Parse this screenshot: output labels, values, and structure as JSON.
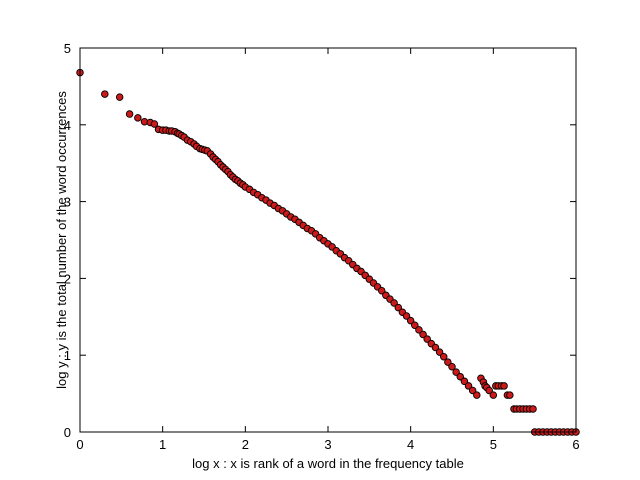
{
  "chart_data": {
    "type": "scatter",
    "title": "",
    "xlabel": "log x : x is rank of a word in the frequency table",
    "ylabel": "log y : y is the total number of the word occurrences",
    "xlim": [
      0,
      6
    ],
    "ylim": [
      0,
      5
    ],
    "xticks": [
      "0",
      "1",
      "2",
      "3",
      "4",
      "5",
      "6"
    ],
    "yticks": [
      "0",
      "1",
      "2",
      "3",
      "4",
      "5"
    ],
    "grid": false,
    "legend": "none",
    "colors": {
      "marker_fill": "#cc1a1a",
      "marker_edge": "#000000",
      "axis": "#000000"
    },
    "series": [
      {
        "values": [
          [
            0.0,
            4.68
          ],
          [
            0.3,
            4.4
          ],
          [
            0.48,
            4.36
          ],
          [
            0.6,
            4.14
          ],
          [
            0.7,
            4.09
          ],
          [
            0.78,
            4.04
          ],
          [
            0.85,
            4.03
          ],
          [
            0.9,
            4.01
          ],
          [
            0.95,
            3.94
          ],
          [
            1.0,
            3.93
          ],
          [
            1.04,
            3.93
          ],
          [
            1.08,
            3.92
          ],
          [
            1.11,
            3.92
          ],
          [
            1.15,
            3.91
          ],
          [
            1.18,
            3.89
          ],
          [
            1.2,
            3.88
          ],
          [
            1.23,
            3.86
          ],
          [
            1.26,
            3.84
          ],
          [
            1.3,
            3.8
          ],
          [
            1.34,
            3.78
          ],
          [
            1.38,
            3.75
          ],
          [
            1.41,
            3.72
          ],
          [
            1.45,
            3.69
          ],
          [
            1.48,
            3.68
          ],
          [
            1.51,
            3.67
          ],
          [
            1.54,
            3.66
          ],
          [
            1.58,
            3.62
          ],
          [
            1.61,
            3.58
          ],
          [
            1.64,
            3.55
          ],
          [
            1.67,
            3.52
          ],
          [
            1.7,
            3.48
          ],
          [
            1.73,
            3.45
          ],
          [
            1.76,
            3.42
          ],
          [
            1.79,
            3.39
          ],
          [
            1.82,
            3.35
          ],
          [
            1.85,
            3.32
          ],
          [
            1.88,
            3.29
          ],
          [
            1.91,
            3.27
          ],
          [
            1.94,
            3.24
          ],
          [
            1.97,
            3.22
          ],
          [
            2.0,
            3.19
          ],
          [
            2.05,
            3.16
          ],
          [
            2.1,
            3.12
          ],
          [
            2.15,
            3.09
          ],
          [
            2.2,
            3.05
          ],
          [
            2.25,
            3.02
          ],
          [
            2.3,
            2.98
          ],
          [
            2.35,
            2.95
          ],
          [
            2.4,
            2.91
          ],
          [
            2.45,
            2.88
          ],
          [
            2.5,
            2.84
          ],
          [
            2.55,
            2.8
          ],
          [
            2.6,
            2.77
          ],
          [
            2.65,
            2.73
          ],
          [
            2.7,
            2.69
          ],
          [
            2.75,
            2.65
          ],
          [
            2.8,
            2.62
          ],
          [
            2.85,
            2.58
          ],
          [
            2.9,
            2.53
          ],
          [
            2.95,
            2.49
          ],
          [
            3.0,
            2.45
          ],
          [
            3.05,
            2.41
          ],
          [
            3.1,
            2.36
          ],
          [
            3.15,
            2.32
          ],
          [
            3.2,
            2.27
          ],
          [
            3.25,
            2.23
          ],
          [
            3.3,
            2.18
          ],
          [
            3.35,
            2.13
          ],
          [
            3.4,
            2.09
          ],
          [
            3.45,
            2.04
          ],
          [
            3.5,
            1.99
          ],
          [
            3.55,
            1.94
          ],
          [
            3.6,
            1.89
          ],
          [
            3.65,
            1.84
          ],
          [
            3.7,
            1.78
          ],
          [
            3.75,
            1.73
          ],
          [
            3.8,
            1.68
          ],
          [
            3.85,
            1.62
          ],
          [
            3.9,
            1.56
          ],
          [
            3.95,
            1.51
          ],
          [
            4.0,
            1.45
          ],
          [
            4.05,
            1.39
          ],
          [
            4.1,
            1.33
          ],
          [
            4.15,
            1.27
          ],
          [
            4.2,
            1.21
          ],
          [
            4.25,
            1.15
          ],
          [
            4.3,
            1.1
          ],
          [
            4.35,
            1.04
          ],
          [
            4.4,
            0.98
          ],
          [
            4.45,
            0.91
          ],
          [
            4.5,
            0.85
          ],
          [
            4.55,
            0.78
          ],
          [
            4.6,
            0.72
          ],
          [
            4.65,
            0.66
          ],
          [
            4.7,
            0.6
          ],
          [
            4.75,
            0.54
          ],
          [
            4.8,
            0.48
          ],
          [
            4.85,
            0.7
          ],
          [
            4.88,
            0.65
          ],
          [
            4.9,
            0.6
          ],
          [
            4.92,
            0.58
          ],
          [
            4.95,
            0.54
          ],
          [
            5.0,
            0.48
          ],
          [
            5.03,
            0.6
          ],
          [
            5.06,
            0.6
          ],
          [
            5.1,
            0.6
          ],
          [
            5.13,
            0.6
          ],
          [
            5.17,
            0.48
          ],
          [
            5.2,
            0.48
          ],
          [
            5.25,
            0.3
          ],
          [
            5.28,
            0.3
          ],
          [
            5.32,
            0.3
          ],
          [
            5.36,
            0.3
          ],
          [
            5.4,
            0.3
          ],
          [
            5.44,
            0.3
          ],
          [
            5.48,
            0.3
          ],
          [
            5.5,
            0.0
          ],
          [
            5.55,
            0.0
          ],
          [
            5.6,
            0.0
          ],
          [
            5.65,
            0.0
          ],
          [
            5.7,
            0.0
          ],
          [
            5.75,
            0.0
          ],
          [
            5.8,
            0.0
          ],
          [
            5.85,
            0.0
          ],
          [
            5.9,
            0.0
          ],
          [
            5.95,
            0.0
          ],
          [
            6.0,
            0.0
          ]
        ]
      }
    ]
  }
}
